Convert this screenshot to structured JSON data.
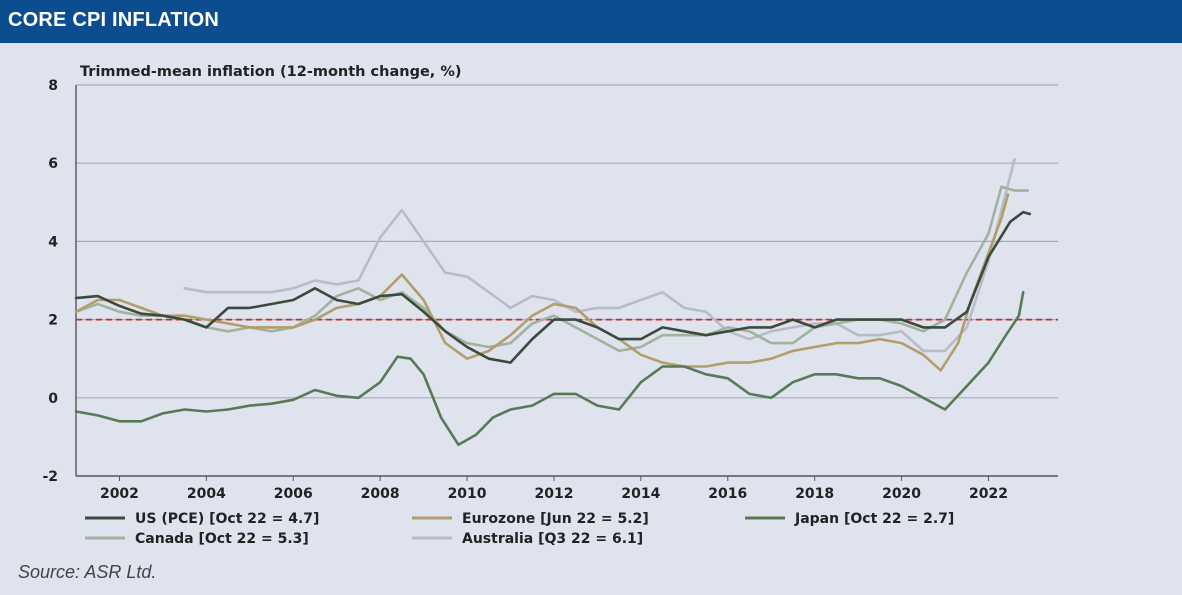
{
  "header": {
    "title": "CORE CPI INFLATION"
  },
  "source": "Source: ASR Ltd.",
  "colors": {
    "header_bg": "#0b4d8f",
    "background": "#dfe3ee",
    "reference_line": "#c0312b"
  },
  "chart_data": {
    "type": "line",
    "title": "Trimmed-mean inflation (12-month change, %)",
    "xlabel": "",
    "ylabel": "",
    "xlim": [
      2001.0,
      2023.6
    ],
    "ylim": [
      -2,
      8
    ],
    "x_ticks": [
      2002,
      2004,
      2006,
      2008,
      2010,
      2012,
      2014,
      2016,
      2018,
      2020,
      2022
    ],
    "y_ticks": [
      -2,
      0,
      2,
      4,
      6,
      8
    ],
    "grid": "horizontal",
    "reference_line": {
      "y": 2,
      "style": "dashed",
      "color": "#c0312b"
    },
    "legend_position": "bottom",
    "series": [
      {
        "name": "US (PCE) [Oct 22 = 4.7]",
        "color": "#3b4a3d",
        "points": [
          [
            2001.0,
            2.55
          ],
          [
            2001.5,
            2.6
          ],
          [
            2002.0,
            2.35
          ],
          [
            2002.5,
            2.15
          ],
          [
            2003.0,
            2.1
          ],
          [
            2003.5,
            2.0
          ],
          [
            2004.0,
            1.8
          ],
          [
            2004.5,
            2.3
          ],
          [
            2005.0,
            2.3
          ],
          [
            2005.5,
            2.4
          ],
          [
            2006.0,
            2.5
          ],
          [
            2006.5,
            2.8
          ],
          [
            2007.0,
            2.5
          ],
          [
            2007.5,
            2.4
          ],
          [
            2008.0,
            2.6
          ],
          [
            2008.5,
            2.65
          ],
          [
            2009.0,
            2.2
          ],
          [
            2009.5,
            1.7
          ],
          [
            2010.0,
            1.3
          ],
          [
            2010.5,
            1.0
          ],
          [
            2011.0,
            0.9
          ],
          [
            2011.5,
            1.5
          ],
          [
            2012.0,
            2.0
          ],
          [
            2012.5,
            2.0
          ],
          [
            2013.0,
            1.8
          ],
          [
            2013.5,
            1.5
          ],
          [
            2014.0,
            1.5
          ],
          [
            2014.5,
            1.8
          ],
          [
            2015.0,
            1.7
          ],
          [
            2015.5,
            1.6
          ],
          [
            2016.0,
            1.7
          ],
          [
            2016.5,
            1.8
          ],
          [
            2017.0,
            1.8
          ],
          [
            2017.5,
            2.0
          ],
          [
            2018.0,
            1.8
          ],
          [
            2018.5,
            2.0
          ],
          [
            2019.0,
            2.0
          ],
          [
            2019.5,
            2.0
          ],
          [
            2020.0,
            2.0
          ],
          [
            2020.5,
            1.8
          ],
          [
            2021.0,
            1.8
          ],
          [
            2021.5,
            2.2
          ],
          [
            2022.0,
            3.6
          ],
          [
            2022.5,
            4.5
          ],
          [
            2022.8,
            4.75
          ],
          [
            2022.95,
            4.7
          ]
        ]
      },
      {
        "name": "Eurozone [Jun 22 = 5.2]",
        "color": "#b19e6a",
        "points": [
          [
            2001.0,
            2.2
          ],
          [
            2001.5,
            2.5
          ],
          [
            2002.0,
            2.5
          ],
          [
            2002.5,
            2.3
          ],
          [
            2003.0,
            2.1
          ],
          [
            2003.5,
            2.1
          ],
          [
            2004.0,
            2.0
          ],
          [
            2004.5,
            1.9
          ],
          [
            2005.0,
            1.8
          ],
          [
            2005.5,
            1.8
          ],
          [
            2006.0,
            1.8
          ],
          [
            2006.5,
            2.0
          ],
          [
            2007.0,
            2.3
          ],
          [
            2007.5,
            2.4
          ],
          [
            2008.0,
            2.6
          ],
          [
            2008.5,
            3.15
          ],
          [
            2009.0,
            2.5
          ],
          [
            2009.5,
            1.4
          ],
          [
            2010.0,
            1.0
          ],
          [
            2010.5,
            1.2
          ],
          [
            2011.0,
            1.6
          ],
          [
            2011.5,
            2.1
          ],
          [
            2012.0,
            2.4
          ],
          [
            2012.5,
            2.3
          ],
          [
            2013.0,
            1.8
          ],
          [
            2013.5,
            1.5
          ],
          [
            2014.0,
            1.1
          ],
          [
            2014.5,
            0.9
          ],
          [
            2015.0,
            0.8
          ],
          [
            2015.5,
            0.8
          ],
          [
            2016.0,
            0.9
          ],
          [
            2016.5,
            0.9
          ],
          [
            2017.0,
            1.0
          ],
          [
            2017.5,
            1.2
          ],
          [
            2018.0,
            1.3
          ],
          [
            2018.5,
            1.4
          ],
          [
            2019.0,
            1.4
          ],
          [
            2019.5,
            1.5
          ],
          [
            2020.0,
            1.4
          ],
          [
            2020.5,
            1.1
          ],
          [
            2020.9,
            0.7
          ],
          [
            2021.3,
            1.4
          ],
          [
            2021.6,
            2.5
          ],
          [
            2022.0,
            3.7
          ],
          [
            2022.3,
            4.6
          ],
          [
            2022.45,
            5.2
          ]
        ]
      },
      {
        "name": "Japan [Oct 22 = 2.7]",
        "color": "#567a58",
        "points": [
          [
            2001.0,
            -0.35
          ],
          [
            2001.5,
            -0.45
          ],
          [
            2002.0,
            -0.6
          ],
          [
            2002.5,
            -0.6
          ],
          [
            2003.0,
            -0.4
          ],
          [
            2003.5,
            -0.3
          ],
          [
            2004.0,
            -0.35
          ],
          [
            2004.5,
            -0.3
          ],
          [
            2005.0,
            -0.2
          ],
          [
            2005.5,
            -0.15
          ],
          [
            2006.0,
            -0.05
          ],
          [
            2006.5,
            0.2
          ],
          [
            2007.0,
            0.05
          ],
          [
            2007.5,
            0.0
          ],
          [
            2008.0,
            0.4
          ],
          [
            2008.4,
            1.05
          ],
          [
            2008.7,
            1.0
          ],
          [
            2009.0,
            0.6
          ],
          [
            2009.4,
            -0.5
          ],
          [
            2009.8,
            -1.2
          ],
          [
            2010.2,
            -0.95
          ],
          [
            2010.6,
            -0.5
          ],
          [
            2011.0,
            -0.3
          ],
          [
            2011.5,
            -0.2
          ],
          [
            2012.0,
            0.1
          ],
          [
            2012.5,
            0.1
          ],
          [
            2013.0,
            -0.2
          ],
          [
            2013.5,
            -0.3
          ],
          [
            2014.0,
            0.4
          ],
          [
            2014.5,
            0.8
          ],
          [
            2015.0,
            0.8
          ],
          [
            2015.5,
            0.6
          ],
          [
            2016.0,
            0.5
          ],
          [
            2016.5,
            0.1
          ],
          [
            2017.0,
            0.0
          ],
          [
            2017.5,
            0.4
          ],
          [
            2018.0,
            0.6
          ],
          [
            2018.5,
            0.6
          ],
          [
            2019.0,
            0.5
          ],
          [
            2019.5,
            0.5
          ],
          [
            2020.0,
            0.3
          ],
          [
            2020.5,
            0.0
          ],
          [
            2021.0,
            -0.3
          ],
          [
            2021.5,
            0.3
          ],
          [
            2022.0,
            0.9
          ],
          [
            2022.4,
            1.6
          ],
          [
            2022.7,
            2.1
          ],
          [
            2022.8,
            2.7
          ]
        ]
      },
      {
        "name": "Canada [Oct 22 = 5.3]",
        "color": "#9fb39e",
        "points": [
          [
            2001.0,
            2.2
          ],
          [
            2001.5,
            2.4
          ],
          [
            2002.0,
            2.2
          ],
          [
            2002.5,
            2.1
          ],
          [
            2003.0,
            2.1
          ],
          [
            2003.5,
            2.0
          ],
          [
            2004.0,
            1.8
          ],
          [
            2004.5,
            1.7
          ],
          [
            2005.0,
            1.8
          ],
          [
            2005.5,
            1.7
          ],
          [
            2006.0,
            1.8
          ],
          [
            2006.5,
            2.1
          ],
          [
            2007.0,
            2.6
          ],
          [
            2007.5,
            2.8
          ],
          [
            2008.0,
            2.5
          ],
          [
            2008.5,
            2.7
          ],
          [
            2009.0,
            2.3
          ],
          [
            2009.5,
            1.7
          ],
          [
            2010.0,
            1.4
          ],
          [
            2010.5,
            1.3
          ],
          [
            2011.0,
            1.4
          ],
          [
            2011.5,
            1.9
          ],
          [
            2012.0,
            2.1
          ],
          [
            2012.5,
            1.8
          ],
          [
            2013.0,
            1.5
          ],
          [
            2013.5,
            1.2
          ],
          [
            2014.0,
            1.3
          ],
          [
            2014.5,
            1.6
          ],
          [
            2015.0,
            1.6
          ],
          [
            2015.5,
            1.6
          ],
          [
            2016.0,
            1.8
          ],
          [
            2016.5,
            1.7
          ],
          [
            2017.0,
            1.4
          ],
          [
            2017.5,
            1.4
          ],
          [
            2018.0,
            1.8
          ],
          [
            2018.5,
            1.9
          ],
          [
            2019.0,
            2.0
          ],
          [
            2019.5,
            2.0
          ],
          [
            2020.0,
            1.9
          ],
          [
            2020.5,
            1.7
          ],
          [
            2021.0,
            2.0
          ],
          [
            2021.5,
            3.2
          ],
          [
            2022.0,
            4.2
          ],
          [
            2022.3,
            5.4
          ],
          [
            2022.6,
            5.3
          ],
          [
            2022.9,
            5.3
          ]
        ]
      },
      {
        "name": "Australia [Q3 22 = 6.1]",
        "color": "#b9bcc8",
        "points": [
          [
            2003.5,
            2.8
          ],
          [
            2004.0,
            2.7
          ],
          [
            2004.5,
            2.7
          ],
          [
            2005.0,
            2.7
          ],
          [
            2005.5,
            2.7
          ],
          [
            2006.0,
            2.8
          ],
          [
            2006.5,
            3.0
          ],
          [
            2007.0,
            2.9
          ],
          [
            2007.5,
            3.0
          ],
          [
            2008.0,
            4.1
          ],
          [
            2008.5,
            4.8
          ],
          [
            2009.0,
            4.0
          ],
          [
            2009.5,
            3.2
          ],
          [
            2010.0,
            3.1
          ],
          [
            2010.5,
            2.7
          ],
          [
            2011.0,
            2.3
          ],
          [
            2011.5,
            2.6
          ],
          [
            2012.0,
            2.5
          ],
          [
            2012.5,
            2.2
          ],
          [
            2013.0,
            2.3
          ],
          [
            2013.5,
            2.3
          ],
          [
            2014.0,
            2.5
          ],
          [
            2014.5,
            2.7
          ],
          [
            2015.0,
            2.3
          ],
          [
            2015.5,
            2.2
          ],
          [
            2016.0,
            1.7
          ],
          [
            2016.5,
            1.5
          ],
          [
            2017.0,
            1.7
          ],
          [
            2017.5,
            1.8
          ],
          [
            2018.0,
            1.9
          ],
          [
            2018.5,
            1.9
          ],
          [
            2019.0,
            1.6
          ],
          [
            2019.5,
            1.6
          ],
          [
            2020.0,
            1.7
          ],
          [
            2020.5,
            1.2
          ],
          [
            2021.0,
            1.2
          ],
          [
            2021.5,
            1.8
          ],
          [
            2022.0,
            3.5
          ],
          [
            2022.3,
            4.8
          ],
          [
            2022.6,
            6.1
          ]
        ]
      }
    ]
  }
}
